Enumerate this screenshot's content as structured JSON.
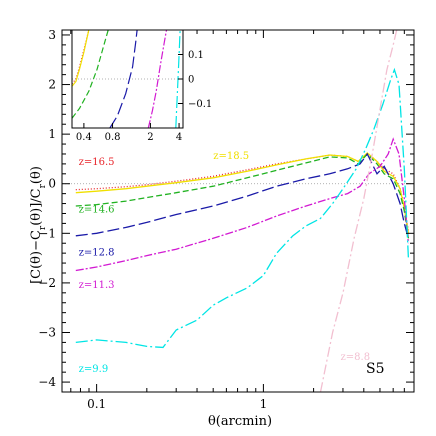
{
  "chart_data": {
    "type": "line",
    "xlabel": "θ(arcmin)",
    "ylabel": "[C(θ)−C_r(θ)]/C_r(θ)",
    "xscale": "log",
    "xlim": [
      0.062,
      8.0
    ],
    "ylim": [
      -4.2,
      3.1
    ],
    "x_ticks": [
      0.1,
      1
    ],
    "x_tick_labels": [
      "0.1",
      "1"
    ],
    "y_ticks": [
      -4,
      -3,
      -2,
      -1,
      0,
      1,
      2,
      3
    ],
    "y_tick_labels": [
      "−4",
      "−3",
      "−2",
      "−1",
      "0",
      "1",
      "2",
      "3"
    ],
    "zero_line": 0,
    "annotation": "S5",
    "series": [
      {
        "name": "z=16.5",
        "color": "#e8252b",
        "dash": "1 2",
        "points": [
          [
            0.075,
            -0.12
          ],
          [
            0.1,
            -0.1
          ],
          [
            0.15,
            -0.06
          ],
          [
            0.2,
            -0.02
          ],
          [
            0.3,
            0.05
          ],
          [
            0.5,
            0.15
          ],
          [
            0.8,
            0.28
          ],
          [
            1.2,
            0.4
          ],
          [
            1.8,
            0.5
          ],
          [
            2.5,
            0.58
          ],
          [
            3.2,
            0.55
          ],
          [
            3.7,
            0.45
          ],
          [
            4.2,
            0.62
          ],
          [
            4.8,
            0.45
          ],
          [
            5.3,
            0.3
          ],
          [
            6.0,
            0.2
          ],
          [
            6.6,
            -0.1
          ],
          [
            7.0,
            -0.45
          ],
          [
            7.4,
            -0.95
          ]
        ],
        "label_x": 0.078,
        "label_y": 0.38
      },
      {
        "name": "z=18.5",
        "color": "#f0e000",
        "dash": "",
        "points": [
          [
            0.075,
            -0.18
          ],
          [
            0.1,
            -0.15
          ],
          [
            0.15,
            -0.1
          ],
          [
            0.2,
            -0.05
          ],
          [
            0.3,
            0.02
          ],
          [
            0.5,
            0.12
          ],
          [
            0.8,
            0.25
          ],
          [
            1.2,
            0.38
          ],
          [
            1.8,
            0.5
          ],
          [
            2.5,
            0.58
          ],
          [
            3.2,
            0.55
          ],
          [
            3.7,
            0.45
          ],
          [
            4.2,
            0.62
          ],
          [
            4.8,
            0.45
          ],
          [
            5.3,
            0.25
          ],
          [
            6.0,
            0.15
          ],
          [
            6.6,
            -0.1
          ],
          [
            7.0,
            -0.5
          ],
          [
            7.4,
            -1.0
          ]
        ],
        "label_x": 0.5,
        "label_y": 0.5
      },
      {
        "name": "z=14.6",
        "color": "#21b221",
        "dash": "6 3",
        "points": [
          [
            0.075,
            -0.45
          ],
          [
            0.1,
            -0.42
          ],
          [
            0.15,
            -0.35
          ],
          [
            0.2,
            -0.28
          ],
          [
            0.3,
            -0.18
          ],
          [
            0.5,
            -0.05
          ],
          [
            0.8,
            0.12
          ],
          [
            1.2,
            0.27
          ],
          [
            1.8,
            0.42
          ],
          [
            2.5,
            0.54
          ],
          [
            3.2,
            0.52
          ],
          [
            3.7,
            0.4
          ],
          [
            4.2,
            0.6
          ],
          [
            4.8,
            0.4
          ],
          [
            5.3,
            0.2
          ],
          [
            6.0,
            0.1
          ],
          [
            6.6,
            -0.2
          ],
          [
            7.0,
            -0.55
          ],
          [
            7.4,
            -1.1
          ]
        ],
        "label_x": 0.078,
        "label_y": -0.58
      },
      {
        "name": "z=12.8",
        "color": "#1a1aa8",
        "dash": "12 4",
        "points": [
          [
            0.075,
            -1.05
          ],
          [
            0.1,
            -1.0
          ],
          [
            0.15,
            -0.88
          ],
          [
            0.2,
            -0.78
          ],
          [
            0.3,
            -0.62
          ],
          [
            0.5,
            -0.45
          ],
          [
            0.8,
            -0.25
          ],
          [
            1.2,
            -0.05
          ],
          [
            1.8,
            0.1
          ],
          [
            2.5,
            0.2
          ],
          [
            3.2,
            0.3
          ],
          [
            3.8,
            0.4
          ],
          [
            4.2,
            0.6
          ],
          [
            4.8,
            0.2
          ],
          [
            5.3,
            0.35
          ],
          [
            6.0,
            0.0
          ],
          [
            6.6,
            -0.4
          ],
          [
            7.0,
            -0.8
          ],
          [
            7.4,
            -1.1
          ]
        ],
        "label_x": 0.078,
        "label_y": -1.45
      },
      {
        "name": "z=11.3",
        "color": "#d21ad2",
        "dash": "8 2 2 2",
        "points": [
          [
            0.075,
            -1.75
          ],
          [
            0.1,
            -1.68
          ],
          [
            0.15,
            -1.55
          ],
          [
            0.2,
            -1.45
          ],
          [
            0.3,
            -1.32
          ],
          [
            0.5,
            -1.1
          ],
          [
            0.8,
            -0.88
          ],
          [
            1.2,
            -0.65
          ],
          [
            1.8,
            -0.45
          ],
          [
            2.5,
            -0.3
          ],
          [
            3.2,
            -0.2
          ],
          [
            3.8,
            -0.05
          ],
          [
            4.3,
            0.2
          ],
          [
            5.0,
            0.35
          ],
          [
            5.6,
            0.6
          ],
          [
            6.0,
            0.9
          ],
          [
            6.5,
            0.6
          ],
          [
            7.0,
            -0.3
          ],
          [
            7.4,
            -1.2
          ]
        ],
        "label_x": 0.078,
        "label_y": -2.1
      },
      {
        "name": "z=9.9",
        "color": "#00e5e5",
        "dash": "12 3 2 3",
        "points": [
          [
            0.075,
            -3.2
          ],
          [
            0.1,
            -3.15
          ],
          [
            0.15,
            -3.2
          ],
          [
            0.2,
            -3.28
          ],
          [
            0.25,
            -3.3
          ],
          [
            0.3,
            -2.95
          ],
          [
            0.4,
            -2.75
          ],
          [
            0.5,
            -2.45
          ],
          [
            0.6,
            -2.3
          ],
          [
            0.8,
            -2.1
          ],
          [
            1.0,
            -1.85
          ],
          [
            1.2,
            -1.4
          ],
          [
            1.5,
            -1.05
          ],
          [
            1.8,
            -0.85
          ],
          [
            2.2,
            -0.7
          ],
          [
            2.6,
            -0.4
          ],
          [
            3.0,
            -0.1
          ],
          [
            3.6,
            0.3
          ],
          [
            4.1,
            0.7
          ],
          [
            4.6,
            1.1
          ],
          [
            5.2,
            1.6
          ],
          [
            5.8,
            2.1
          ],
          [
            6.1,
            2.3
          ],
          [
            6.5,
            2.0
          ],
          [
            7.0,
            0.3
          ],
          [
            7.4,
            -1.5
          ]
        ],
        "label_x": 0.078,
        "label_y": -3.8
      },
      {
        "name": "z=8.8",
        "color": "#f2bfd0",
        "dash": "10 3 2 3",
        "points": [
          [
            2.2,
            -4.2
          ],
          [
            2.6,
            -3.0
          ],
          [
            3.0,
            -2.2
          ],
          [
            3.5,
            -1.1
          ],
          [
            4.0,
            -0.3
          ],
          [
            4.5,
            0.6
          ],
          [
            5.0,
            1.5
          ],
          [
            5.5,
            2.3
          ],
          [
            6.0,
            2.8
          ],
          [
            6.3,
            3.1
          ]
        ],
        "label_x": 2.9,
        "label_y": -3.55
      }
    ],
    "inset": {
      "xscale": "log",
      "xlim": [
        0.3,
        4.4
      ],
      "ylim": [
        -0.2,
        0.2
      ],
      "x_ticks": [
        0.4,
        0.8,
        2,
        4
      ],
      "x_tick_labels": [
        "0.4",
        "0.8",
        "2",
        "4"
      ],
      "y_ticks": [
        -0.1,
        0,
        0.1
      ],
      "y_tick_labels": [
        "−0.1",
        "0",
        "0.1"
      ],
      "zero_line": 0,
      "series": [
        {
          "name": "z=16.5",
          "color": "#e8252b",
          "dash": "1 2",
          "points": [
            [
              0.3,
              -0.02
            ],
            [
              0.33,
              0.0
            ],
            [
              0.36,
              0.05
            ],
            [
              0.4,
              0.12
            ],
            [
              0.45,
              0.2
            ]
          ]
        },
        {
          "name": "z=18.5",
          "color": "#f0e000",
          "dash": "",
          "points": [
            [
              0.3,
              -0.03
            ],
            [
              0.33,
              -0.01
            ],
            [
              0.36,
              0.04
            ],
            [
              0.4,
              0.11
            ],
            [
              0.45,
              0.2
            ]
          ]
        },
        {
          "name": "z=14.6",
          "color": "#21b221",
          "dash": "6 3",
          "points": [
            [
              0.3,
              -0.16
            ],
            [
              0.36,
              -0.12
            ],
            [
              0.45,
              -0.05
            ],
            [
              0.55,
              0.04
            ],
            [
              0.65,
              0.14
            ],
            [
              0.72,
              0.2
            ]
          ]
        },
        {
          "name": "z=12.8",
          "color": "#1a1aa8",
          "dash": "12 4",
          "points": [
            [
              0.75,
              -0.2
            ],
            [
              0.9,
              -0.15
            ],
            [
              1.1,
              -0.06
            ],
            [
              1.3,
              0.05
            ],
            [
              1.4,
              0.15
            ],
            [
              1.45,
              0.2
            ]
          ]
        },
        {
          "name": "z=11.3",
          "color": "#d21ad2",
          "dash": "8 2 2 2",
          "points": [
            [
              1.9,
              -0.2
            ],
            [
              2.1,
              -0.13
            ],
            [
              2.3,
              -0.05
            ],
            [
              2.55,
              0.06
            ],
            [
              2.8,
              0.15
            ],
            [
              2.95,
              0.2
            ]
          ]
        },
        {
          "name": "z=9.9",
          "color": "#00e5e5",
          "dash": "12 3 2 3",
          "points": [
            [
              3.7,
              -0.2
            ],
            [
              3.8,
              -0.1
            ],
            [
              3.9,
              0.0
            ],
            [
              4.0,
              0.1
            ],
            [
              4.1,
              0.2
            ]
          ]
        }
      ]
    }
  }
}
